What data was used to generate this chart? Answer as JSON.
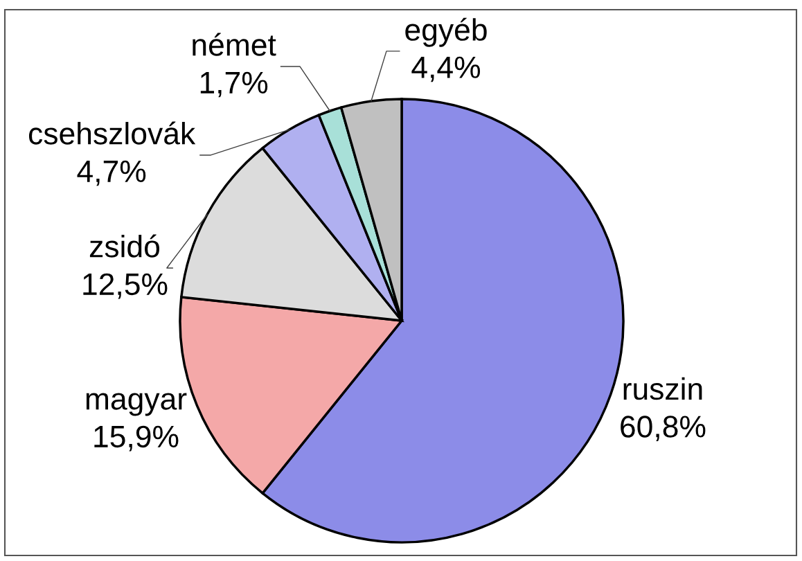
{
  "chart_data": {
    "type": "pie",
    "categories": [
      "ruszin",
      "magyar",
      "zsidó",
      "csehszlovák",
      "német",
      "egyéb"
    ],
    "values": [
      60.8,
      15.9,
      12.5,
      4.7,
      1.7,
      4.4
    ],
    "value_labels": [
      "60,8%",
      "15,9%",
      "12,5%",
      "4,7%",
      "1,7%",
      "4,4%"
    ],
    "colors": [
      "#8c8ce8",
      "#f4a8a8",
      "#dcdcdc",
      "#b0b0f0",
      "#a8e0d8",
      "#c0c0c0"
    ]
  }
}
